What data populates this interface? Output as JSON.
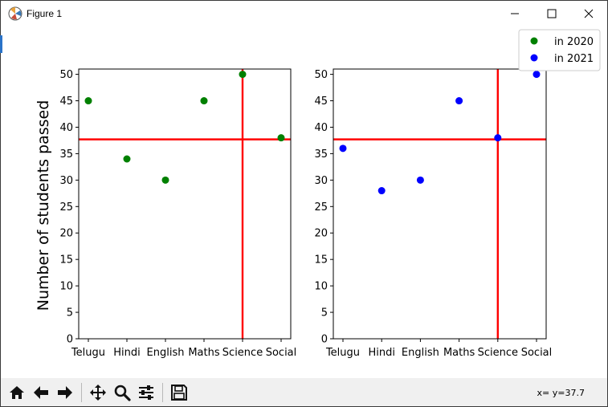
{
  "window": {
    "title": "Figure 1"
  },
  "toolbar": {
    "buttons": [
      {
        "name": "home-icon"
      },
      {
        "name": "back-arrow-icon"
      },
      {
        "name": "forward-arrow-icon"
      },
      {
        "name": "pan-icon"
      },
      {
        "name": "zoom-icon"
      },
      {
        "name": "configure-subplots-icon"
      },
      {
        "name": "save-icon"
      }
    ],
    "coords": "x= y=37.7"
  },
  "legend": {
    "entries": [
      {
        "label": "in 2020",
        "color": "#008000"
      },
      {
        "label": "in 2021",
        "color": "#0000ff"
      }
    ]
  },
  "chart_data": [
    {
      "type": "scatter",
      "categories": [
        "Telugu",
        "Hindi",
        "English",
        "Maths",
        "Science",
        "Social"
      ],
      "series": [
        {
          "name": "in 2020",
          "color": "#008000",
          "values": [
            45,
            34,
            30,
            45,
            50,
            38
          ]
        }
      ],
      "ylabel": "Number of students passed",
      "ylim": [
        0,
        51
      ],
      "yticks": [
        0,
        5,
        10,
        15,
        20,
        25,
        30,
        35,
        40,
        45,
        50
      ],
      "hline": {
        "y": 37.7,
        "color": "#ff0000"
      },
      "vline": {
        "x": "Science",
        "color": "#ff0000"
      }
    },
    {
      "type": "scatter",
      "categories": [
        "Telugu",
        "Hindi",
        "English",
        "Maths",
        "Science",
        "Social"
      ],
      "series": [
        {
          "name": "in 2021",
          "color": "#0000ff",
          "values": [
            36,
            28,
            30,
            45,
            38,
            50
          ]
        }
      ],
      "ylim": [
        0,
        51
      ],
      "yticks": [
        0,
        5,
        10,
        15,
        20,
        25,
        30,
        35,
        40,
        45,
        50
      ],
      "hline": {
        "y": 37.7,
        "color": "#ff0000"
      },
      "vline": {
        "x": "Science",
        "color": "#ff0000"
      }
    }
  ]
}
